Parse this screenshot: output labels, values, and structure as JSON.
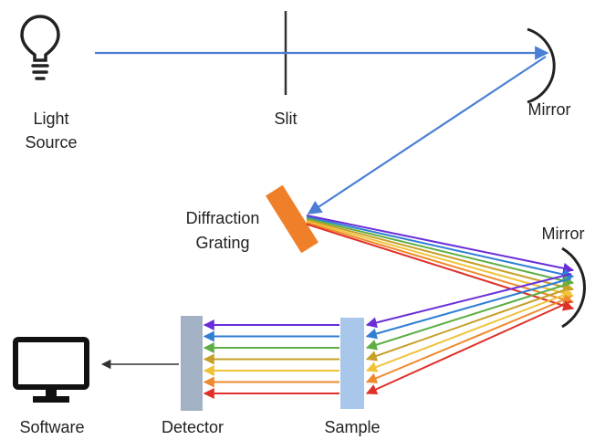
{
  "labels": {
    "light_source_line1": "Light",
    "light_source_line2": "Source",
    "slit": "Slit",
    "mirror_top": "Mirror",
    "grating_line1": "Diffraction",
    "grating_line2": "Grating",
    "mirror_right": "Mirror",
    "software": "Software",
    "detector": "Detector",
    "sample": "Sample"
  },
  "colors": {
    "beam": "#4a7fd4",
    "grating": "#f07f2a",
    "detector": "#a3b1c4",
    "sample": "#a9c7ea",
    "outline": "#222222",
    "spectrum": [
      "#6a2ed8",
      "#2f7ed4",
      "#5fae45",
      "#c7a02a",
      "#f0c23a",
      "#ef8a2c",
      "#e0302a"
    ]
  },
  "icons": {
    "light_source": "lightbulb-icon",
    "computer": "monitor-icon"
  }
}
